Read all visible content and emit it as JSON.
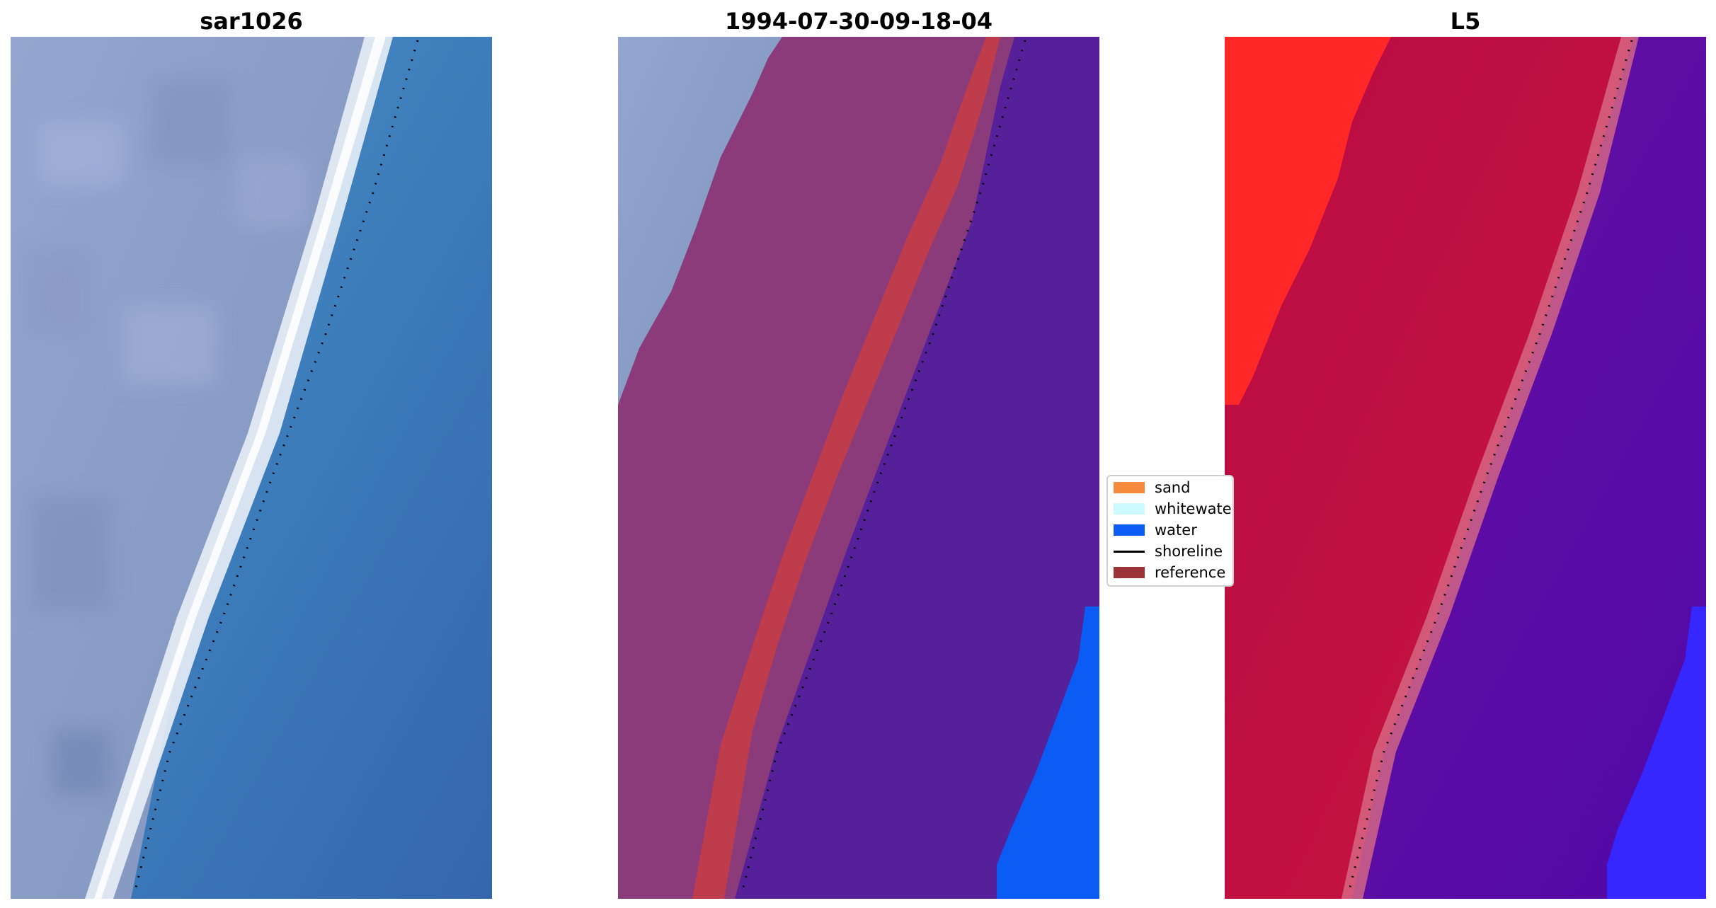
{
  "panels": [
    {
      "title": "sar1026"
    },
    {
      "title": "1994-07-30-09-18-04"
    },
    {
      "title": "L5"
    }
  ],
  "legend": {
    "items": [
      {
        "label": "sand",
        "color": "#f58a3c",
        "kind": "patch"
      },
      {
        "label": "whitewater",
        "color": "#ccfaff",
        "kind": "patch"
      },
      {
        "label": "water",
        "color": "#0a5cf5",
        "kind": "patch"
      },
      {
        "label": "shoreline",
        "color": "#000000",
        "kind": "line"
      },
      {
        "label": "reference",
        "color": "#9b3338",
        "kind": "patch"
      }
    ]
  },
  "colors": {
    "land_rgb": "#8f9bc1",
    "ocean_rgb": "#3d78b6",
    "surf": "#f4f8fb",
    "land_class": "#8b3b79",
    "water_class": "#55209a",
    "deep_water": "#0a5cf5",
    "reference_band": "#bf3c4c",
    "land_prob": "#c20f3f",
    "land_prob_high": "#ff2727",
    "water_prob": "#5a0aa3",
    "water_prob_high": "#3626ff"
  }
}
